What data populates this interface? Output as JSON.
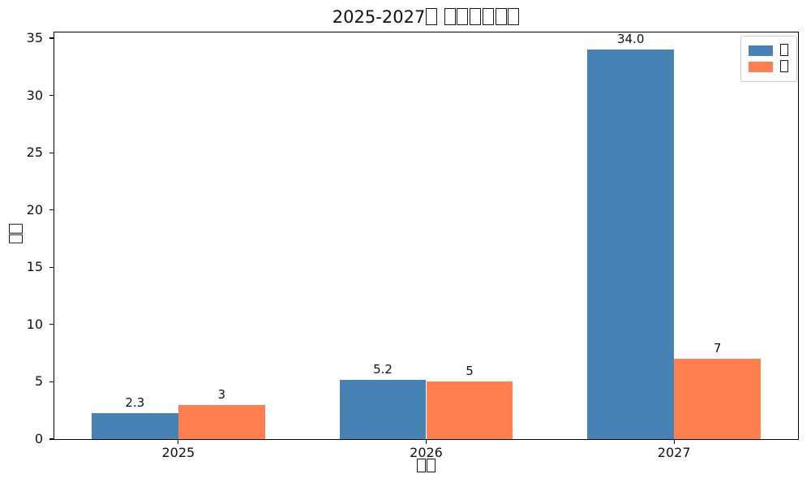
{
  "chart_data": {
    "type": "bar",
    "title": "2025-2027□ □□□□□□",
    "xlabel": "□□",
    "ylabel": "□□",
    "categories": [
      "2025",
      "2026",
      "2027"
    ],
    "series": [
      {
        "name": "□",
        "color": "#4682B4",
        "values": [
          2.3,
          5.2,
          34.0
        ],
        "value_labels": [
          "2.3",
          "5.2",
          "34.0"
        ]
      },
      {
        "name": "□",
        "color": "#FF7F50",
        "values": [
          3,
          5,
          7
        ],
        "value_labels": [
          "3",
          "5",
          "7"
        ]
      }
    ],
    "ylim": [
      0,
      35.5
    ],
    "yticks": [
      0,
      5,
      10,
      15,
      20,
      25,
      30,
      35
    ],
    "ytick_labels": [
      "0",
      "5",
      "10",
      "15",
      "20",
      "25",
      "30",
      "35"
    ],
    "bar_width": 0.35,
    "grid": false,
    "legend_position": "upper right",
    "axis_color": "#000000",
    "background_color": "#ffffff"
  }
}
